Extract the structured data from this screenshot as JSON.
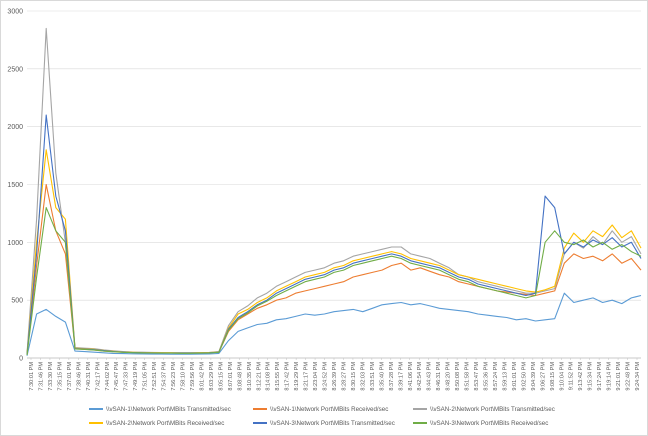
{
  "chart_data": {
    "type": "line",
    "title": "",
    "xlabel": "",
    "ylabel": "",
    "ylim": [
      0,
      3000
    ],
    "yticks": [
      0,
      500,
      1000,
      1500,
      2000,
      2500,
      3000
    ],
    "grid": true,
    "legend_position": "bottom",
    "x_tick_labels": [
      "7:30:01 PM",
      "7:31:46 PM",
      "7:33:30 PM",
      "7:35:15 PM",
      "7:37:01 PM",
      "7:38:46 PM",
      "7:40:31 PM",
      "7:42:17 PM",
      "7:44:02 PM",
      "7:45:47 PM",
      "7:47:33 PM",
      "7:49:19 PM",
      "7:51:05 PM",
      "7:52:51 PM",
      "7:54:37 PM",
      "7:56:23 PM",
      "7:58:10 PM",
      "7:59:56 PM",
      "8:01:42 PM",
      "8:03:29 PM",
      "8:05:15 PM",
      "8:07:01 PM",
      "8:08:48 PM",
      "8:10:35 PM",
      "8:12:21 PM",
      "8:14:08 PM",
      "8:15:55 PM",
      "8:17:42 PM",
      "8:19:29 PM",
      "8:21:17 PM",
      "8:23:04 PM",
      "8:24:52 PM",
      "8:26:39 PM",
      "8:28:27 PM",
      "8:30:15 PM",
      "8:32:03 PM",
      "8:33:51 PM",
      "8:35:40 PM",
      "8:37:28 PM",
      "8:39:17 PM",
      "8:41:06 PM",
      "8:42:54 PM",
      "8:44:43 PM",
      "8:46:31 PM",
      "8:48:20 PM",
      "8:50:08 PM",
      "8:51:58 PM",
      "8:53:47 PM",
      "8:55:36 PM",
      "8:57:24 PM",
      "8:59:13 PM",
      "9:01:01 PM",
      "9:02:50 PM",
      "9:04:39 PM",
      "9:06:27 PM",
      "9:08:15 PM",
      "9:10:04 PM",
      "9:11:52 PM",
      "9:13:42 PM",
      "9:15:34 PM",
      "9:17:24 PM",
      "9:19:14 PM",
      "9:21:01 PM",
      "9:22:48 PM",
      "9:24:34 PM"
    ],
    "series": [
      {
        "name": "\\\\vSAN-1\\Network Port\\MBits Transmitted/sec",
        "color": "#5b9bd5",
        "values": [
          20,
          380,
          420,
          360,
          310,
          60,
          55,
          50,
          45,
          40,
          38,
          36,
          35,
          34,
          34,
          33,
          33,
          33,
          34,
          35,
          40,
          150,
          230,
          260,
          290,
          300,
          330,
          340,
          360,
          380,
          370,
          380,
          400,
          410,
          420,
          400,
          430,
          460,
          470,
          480,
          460,
          470,
          450,
          430,
          420,
          410,
          400,
          380,
          370,
          360,
          350,
          330,
          340,
          320,
          330,
          340,
          560,
          480,
          500,
          520,
          480,
          500,
          470,
          520,
          540
        ]
      },
      {
        "name": "\\\\vSAN-1\\Network Port\\MBits Received/sec",
        "color": "#ed7d31",
        "values": [
          30,
          800,
          1500,
          1100,
          900,
          80,
          75,
          70,
          60,
          55,
          50,
          48,
          46,
          45,
          44,
          44,
          43,
          43,
          44,
          46,
          50,
          230,
          330,
          380,
          430,
          460,
          500,
          520,
          560,
          580,
          600,
          620,
          640,
          660,
          700,
          720,
          740,
          760,
          800,
          820,
          760,
          780,
          750,
          720,
          700,
          660,
          640,
          620,
          600,
          580,
          570,
          560,
          550,
          540,
          560,
          580,
          820,
          900,
          860,
          880,
          840,
          900,
          820,
          860,
          760
        ]
      },
      {
        "name": "\\\\vSAN-2\\Network Port\\MBits Transmitted/sec",
        "color": "#a5a5a5",
        "values": [
          40,
          1200,
          2850,
          1600,
          1000,
          90,
          85,
          80,
          70,
          62,
          56,
          52,
          50,
          48,
          47,
          46,
          46,
          46,
          47,
          48,
          55,
          280,
          400,
          450,
          520,
          560,
          620,
          660,
          700,
          740,
          760,
          780,
          820,
          840,
          880,
          900,
          920,
          940,
          960,
          960,
          900,
          880,
          860,
          820,
          780,
          720,
          700,
          660,
          640,
          620,
          600,
          580,
          560,
          560,
          580,
          600,
          900,
          1000,
          950,
          1050,
          980,
          1100,
          1000,
          1050,
          900
        ]
      },
      {
        "name": "\\\\vSAN-2\\Network Port\\MBits Received/sec",
        "color": "#ffc000",
        "values": [
          35,
          1000,
          1800,
          1300,
          1200,
          85,
          80,
          75,
          66,
          58,
          52,
          49,
          47,
          46,
          45,
          45,
          44,
          44,
          45,
          47,
          52,
          260,
          380,
          420,
          480,
          520,
          580,
          620,
          660,
          700,
          720,
          740,
          780,
          800,
          840,
          860,
          880,
          900,
          920,
          900,
          860,
          840,
          820,
          800,
          760,
          720,
          700,
          680,
          660,
          640,
          620,
          600,
          580,
          570,
          590,
          620,
          950,
          1080,
          1000,
          1100,
          1050,
          1150,
          1040,
          1100,
          950
        ]
      },
      {
        "name": "\\\\vSAN-3\\Network Port\\MBits Transmitted/sec",
        "color": "#4472c4",
        "values": [
          30,
          900,
          2100,
          1400,
          1100,
          80,
          78,
          72,
          64,
          56,
          50,
          47,
          45,
          44,
          43,
          43,
          42,
          42,
          43,
          45,
          50,
          250,
          350,
          400,
          460,
          500,
          560,
          600,
          640,
          680,
          700,
          720,
          760,
          780,
          820,
          840,
          860,
          880,
          900,
          880,
          840,
          820,
          800,
          780,
          740,
          700,
          680,
          640,
          620,
          600,
          580,
          560,
          540,
          560,
          1400,
          1300,
          900,
          1000,
          960,
          1020,
          980,
          1040,
          960,
          1000,
          860
        ]
      },
      {
        "name": "\\\\vSAN-3\\Network Port\\MBits Received/sec",
        "color": "#70ad47",
        "values": [
          25,
          700,
          1300,
          1100,
          1000,
          78,
          74,
          68,
          60,
          54,
          49,
          46,
          44,
          43,
          42,
          42,
          41,
          41,
          42,
          44,
          49,
          240,
          340,
          390,
          450,
          490,
          540,
          580,
          620,
          660,
          680,
          700,
          740,
          760,
          800,
          820,
          840,
          860,
          880,
          860,
          820,
          800,
          780,
          760,
          720,
          680,
          660,
          620,
          600,
          580,
          560,
          540,
          520,
          540,
          1000,
          1100,
          1000,
          980,
          1020,
          960,
          1000,
          940,
          980,
          920,
          880
        ]
      }
    ]
  }
}
